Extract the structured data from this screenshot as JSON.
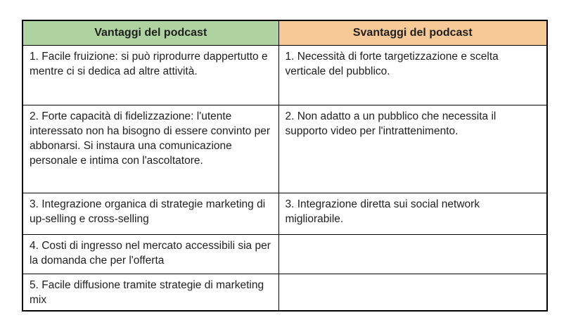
{
  "table": {
    "headers": [
      {
        "label": "Vantaggi del podcast"
      },
      {
        "label": "Svantaggi del podcast"
      }
    ],
    "rows": [
      {
        "left": "1. Facile fruizione: si può riprodurre dappertutto e mentre ci si dedica ad altre attività.",
        "right": "1. Necessità di forte targetizzazione e scelta verticale del pubblico."
      },
      {
        "left": "2. Forte capacità di fidelizzazione: l'utente interessato non ha bisogno di essere convinto per abbonarsi. Si instaura una comunicazione personale e intima con l'ascoltatore.",
        "right": "2. Non adatto a un pubblico che necessita il supporto video per l'intrattenimento."
      },
      {
        "left": "3. Integrazione organica di strategie marketing di up-selling e cross-selling",
        "right": "3. Integrazione diretta sui social network migliorabile."
      },
      {
        "left": "4. Costi di ingresso nel mercato accessibili sia per la domanda che per l'offerta",
        "right": ""
      },
      {
        "left": "5. Facile diffusione tramite strategie di marketing mix",
        "right": ""
      }
    ]
  },
  "colors": {
    "header_green": "#aed3a0",
    "header_orange": "#f6c996",
    "border": "#000000",
    "text": "#1f1f1f",
    "background": "#ffffff"
  }
}
